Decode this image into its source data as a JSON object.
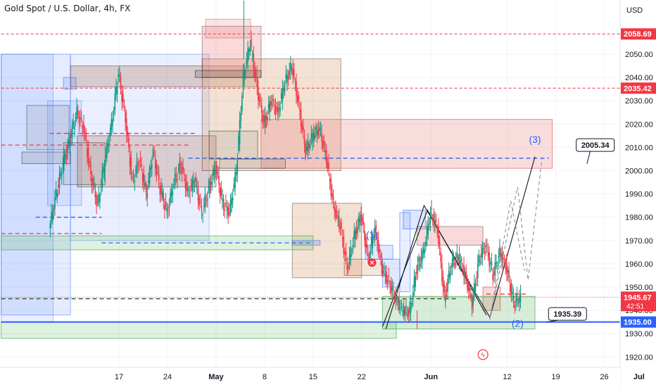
{
  "header": {
    "title": "Gold Spot / U.S. Dollar, 4h, FX"
  },
  "chart_data": {
    "type": "candlestick",
    "symbol": "Gold Spot / U.S. Dollar",
    "interval": "4h",
    "source": "FX",
    "currency": "USD",
    "ylim": [
      1916,
      2073
    ],
    "grid": true,
    "y_ticks": [
      1920,
      1930,
      1940,
      1950,
      1960,
      1970,
      1980,
      1990,
      2000,
      2010,
      2020,
      2030,
      2040,
      2050
    ],
    "x_ticks": [
      {
        "label": "17",
        "day": 17
      },
      {
        "label": "24",
        "day": 24
      },
      {
        "label": "May",
        "day": 31
      },
      {
        "label": "8",
        "day": 38
      },
      {
        "label": "15",
        "day": 45
      },
      {
        "label": "22",
        "day": 52
      },
      {
        "label": "Jun",
        "day": 62
      },
      {
        "label": "12",
        "day": 73
      },
      {
        "label": "19",
        "day": 80
      },
      {
        "label": "26",
        "day": 87
      },
      {
        "label": "Jul",
        "day": 92
      }
    ],
    "price_tags": [
      {
        "label": "2058.69",
        "value": 2058.69,
        "color": "#f23645"
      },
      {
        "label": "2035.42",
        "value": 2035.42,
        "color": "#f23645"
      },
      {
        "label": "1945.67",
        "value": 1945.67,
        "color": "#f23645",
        "extra": "42:51"
      },
      {
        "label": "1935.00",
        "value": 1935.0,
        "color": "#2962ff"
      }
    ],
    "callouts": [
      {
        "label": "2005.34",
        "value": 2005.34
      },
      {
        "label": "1935.39",
        "value": 1935.39
      }
    ],
    "wave_labels": [
      "(1)",
      "(2)",
      "(3)"
    ],
    "close_path": [
      [
        7,
        1975
      ],
      [
        8,
        1990
      ],
      [
        9,
        2003
      ],
      [
        10,
        2014
      ],
      [
        11,
        2025
      ],
      [
        12,
        2018
      ],
      [
        13,
        1998
      ],
      [
        14,
        1985
      ],
      [
        15,
        2004
      ],
      [
        16,
        2020
      ],
      [
        17,
        2042
      ],
      [
        18,
        2022
      ],
      [
        19,
        1995
      ],
      [
        20,
        2005
      ],
      [
        21,
        1990
      ],
      [
        22,
        2008
      ],
      [
        23,
        1992
      ],
      [
        24,
        1982
      ],
      [
        25,
        1995
      ],
      [
        26,
        2003
      ],
      [
        27,
        1990
      ],
      [
        28,
        1996
      ],
      [
        29,
        1982
      ],
      [
        30,
        1992
      ],
      [
        31,
        2002
      ],
      [
        32,
        1986
      ],
      [
        33,
        1982
      ],
      [
        34,
        2000
      ],
      [
        35,
        2040
      ],
      [
        36,
        2055
      ],
      [
        37,
        2035
      ],
      [
        38,
        2020
      ],
      [
        39,
        2030
      ],
      [
        40,
        2025
      ],
      [
        41,
        2038
      ],
      [
        42,
        2045
      ],
      [
        43,
        2028
      ],
      [
        44,
        2008
      ],
      [
        45,
        2015
      ],
      [
        46,
        2018
      ],
      [
        47,
        2005
      ],
      [
        48,
        1985
      ],
      [
        49,
        1976
      ],
      [
        50,
        1958
      ],
      [
        51,
        1972
      ],
      [
        52,
        1981
      ],
      [
        53,
        1962
      ],
      [
        54,
        1975
      ],
      [
        55,
        1958
      ],
      [
        56,
        1952
      ],
      [
        57,
        1945
      ],
      [
        58,
        1940
      ],
      [
        59,
        1939
      ],
      [
        60,
        1958
      ],
      [
        61,
        1965
      ],
      [
        62,
        1982
      ],
      [
        63,
        1975
      ],
      [
        64,
        1945
      ],
      [
        65,
        1960
      ],
      [
        66,
        1963
      ],
      [
        67,
        1955
      ],
      [
        68,
        1943
      ],
      [
        69,
        1962
      ],
      [
        70,
        1968
      ],
      [
        71,
        1955
      ],
      [
        72,
        1965
      ],
      [
        73,
        1958
      ],
      [
        74,
        1943
      ],
      [
        75,
        1945.67
      ]
    ],
    "wick_extremes": {
      "high": {
        "day": 35,
        "value": 2073
      },
      "low": {
        "day": 60,
        "value": 1932
      }
    }
  }
}
